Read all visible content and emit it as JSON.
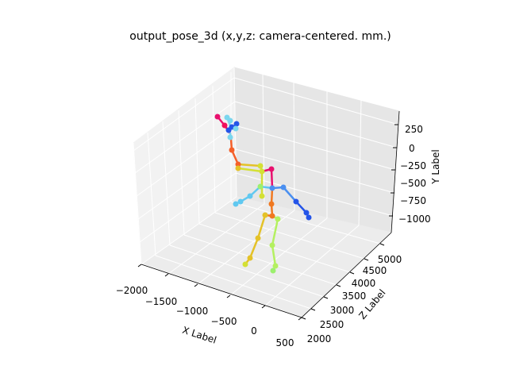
{
  "chart_data": {
    "type": "scatter3d",
    "title": "output_pose_3d (x,y,z: camera-centered. mm.)",
    "xlabel": "X Label",
    "ylabel": "Y Label",
    "zlabel": "Z Label",
    "x_ticks": [
      "−2000",
      "−1500",
      "−1000",
      "−500",
      "0",
      "500"
    ],
    "z_ticks": [
      "2000",
      "2500",
      "3000",
      "3500",
      "4000",
      "4500",
      "5000"
    ],
    "y_ticks": [
      "250",
      "0",
      "−250",
      "−500",
      "−750",
      "−1000"
    ],
    "grid": true,
    "joint_colors": [
      "#e8106e",
      "#f0105a",
      "#f5602a",
      "#d4e034",
      "#9cf06e",
      "#4a8ff0",
      "#2454e8",
      "#7ad6ee",
      "#e4c228",
      "#f07820",
      "#b4f060",
      "#60c8f0"
    ]
  }
}
